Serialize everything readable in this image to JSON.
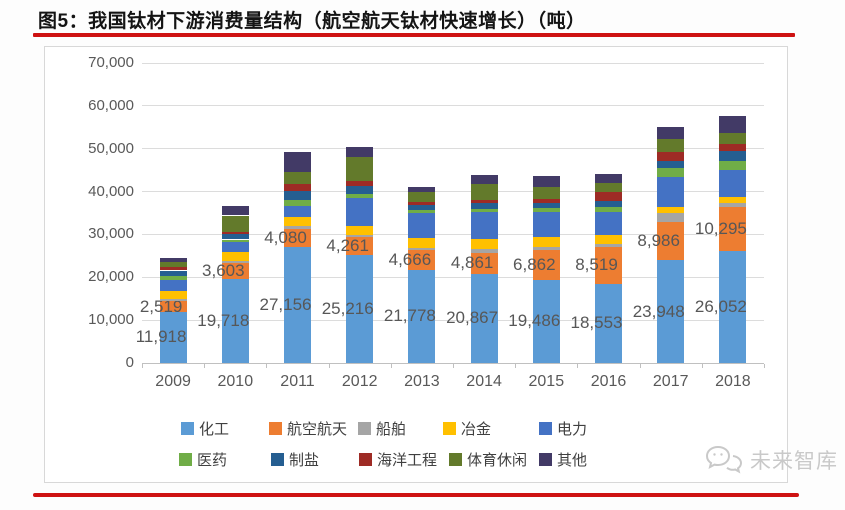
{
  "title": "图5：我国钛材下游消费量结构（航空航天钛材快速增长）（吨）",
  "watermark": {
    "text": "未来智库",
    "icon": "chat-bubbles-icon"
  },
  "colors": {
    "accent_red": "#CE1212",
    "grid": "#DCDCDC",
    "axis_text": "#595959",
    "data_label_text": "#575757",
    "legend_text": "#404040",
    "watermark_gray": "#C9C9C9",
    "chart_border": "#D8D8D8"
  },
  "chart_data": {
    "type": "bar",
    "stacked": true,
    "title": "图5：我国钛材下游消费量结构（航空航天钛材快速增长）（吨）",
    "unit": "吨",
    "categories": [
      "2009",
      "2010",
      "2011",
      "2012",
      "2013",
      "2014",
      "2015",
      "2016",
      "2017",
      "2018"
    ],
    "series": [
      {
        "name": "化工",
        "color": "#5B9BD5",
        "labeled": true,
        "values": [
          11918,
          19718,
          27156,
          25216,
          21778,
          20867,
          19486,
          18553,
          23948,
          26052
        ]
      },
      {
        "name": "航空航天",
        "color": "#ED7D31",
        "labeled": true,
        "values": [
          2519,
          3603,
          4080,
          4261,
          4666,
          4861,
          6862,
          8519,
          8986,
          10295
        ]
      },
      {
        "name": "船舶",
        "color": "#A5A5A5",
        "labeled": false,
        "values": [
          600,
          500,
          800,
          500,
          400,
          780,
          780,
          780,
          2100,
          900
        ]
      },
      {
        "name": "冶金",
        "color": "#FFC000",
        "labeled": false,
        "values": [
          1700,
          2000,
          2100,
          2000,
          2400,
          2500,
          2330,
          2100,
          1320,
          1560
        ]
      },
      {
        "name": "电力",
        "color": "#4472C4",
        "labeled": false,
        "values": [
          2700,
          2400,
          2600,
          6500,
          5650,
          6200,
          5820,
          5200,
          7000,
          6200
        ]
      },
      {
        "name": "医药",
        "color": "#70AD47",
        "labeled": false,
        "values": [
          850,
          600,
          1400,
          1000,
          780,
          780,
          860,
          1160,
          2170,
          2020
        ]
      },
      {
        "name": "制盐",
        "color": "#255E91",
        "labeled": false,
        "values": [
          1300,
          1300,
          2100,
          1930,
          1160,
          1240,
          1160,
          1400,
          1700,
          2330
        ]
      },
      {
        "name": "海洋工程",
        "color": "#9E2B25",
        "labeled": false,
        "values": [
          770,
          500,
          1550,
          1160,
          780,
          780,
          930,
          2300,
          2020,
          1860
        ]
      },
      {
        "name": "体育休闲",
        "color": "#637A2B",
        "labeled": false,
        "values": [
          1160,
          3800,
          2700,
          5400,
          2330,
          3650,
          2870,
          1940,
          3100,
          2560
        ]
      },
      {
        "name": "其他",
        "color": "#423A66",
        "labeled": false,
        "values": [
          930,
          2300,
          4650,
          2330,
          1090,
          2100,
          2560,
          2100,
          2640,
          3880
        ]
      }
    ],
    "ylim": [
      0,
      70000
    ],
    "ytick_step": 10000,
    "ytick_labels": [
      "0",
      "10,000",
      "20,000",
      "30,000",
      "40,000",
      "50,000",
      "60,000",
      "70,000"
    ],
    "grid": true,
    "legend_position": "bottom",
    "legend_rows": [
      [
        "化工",
        "航空航天",
        "船舶",
        "冶金",
        "电力"
      ],
      [
        "医药",
        "制盐",
        "海洋工程",
        "体育休闲",
        "其他"
      ]
    ],
    "data_labels_series": [
      "化工",
      "航空航天"
    ]
  }
}
